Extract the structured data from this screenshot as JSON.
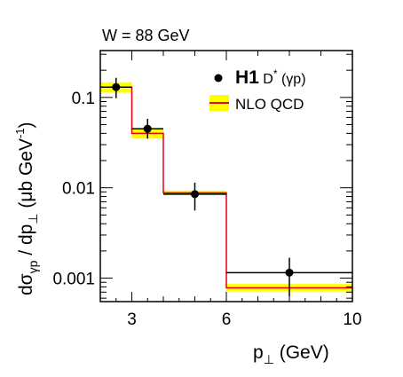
{
  "chart_data": {
    "type": "step",
    "title": "W = 88 GeV",
    "xlabel": {
      "main": "p",
      "sub": "⊥",
      "unit": "  (GeV)"
    },
    "ylabel": {
      "d1": "dσ",
      "sub1": "γp",
      "mid": " / dp",
      "sub2": "⊥",
      "unit": "  (μb GeV",
      "exp": "-1",
      "close": ")"
    },
    "x_scale": "linear",
    "y_scale": "log",
    "xlim": [
      2,
      10
    ],
    "ylim": [
      0.00055,
      0.33
    ],
    "x_ticks": [
      3,
      6,
      10
    ],
    "y_ticks": [
      0.1,
      0.01,
      0.001
    ],
    "grid": false,
    "legend_position": "top-right",
    "series": [
      {
        "name": "H1",
        "name_suffix": " D",
        "name_sup": "*",
        "name_tail": " (γp)",
        "kind": "data",
        "color": "#000000",
        "points": [
          {
            "x": 2.5,
            "y": 0.13,
            "ylow": 0.098,
            "yhigh": 0.165,
            "xlow": 2,
            "xhigh": 3
          },
          {
            "x": 3.5,
            "y": 0.045,
            "ylow": 0.035,
            "yhigh": 0.058,
            "xlow": 3,
            "xhigh": 4
          },
          {
            "x": 5.0,
            "y": 0.0085,
            "ylow": 0.0056,
            "yhigh": 0.0114,
            "xlow": 4,
            "xhigh": 6
          },
          {
            "x": 8.0,
            "y": 0.00115,
            "ylow": 0.00063,
            "yhigh": 0.00168,
            "xlow": 6,
            "xhigh": 10
          }
        ]
      },
      {
        "name": "NLO QCD",
        "kind": "theory-band",
        "line_color": "#e8000b",
        "band_color": "#ffff00",
        "bins": [
          {
            "xlow": 2,
            "xhigh": 3,
            "y": 0.13,
            "ylow": 0.113,
            "yhigh": 0.147
          },
          {
            "xlow": 3,
            "xhigh": 4,
            "y": 0.04,
            "ylow": 0.035,
            "yhigh": 0.045
          },
          {
            "xlow": 4,
            "xhigh": 6,
            "y": 0.0088,
            "ylow": 0.0083,
            "yhigh": 0.0093
          },
          {
            "xlow": 6,
            "xhigh": 10,
            "y": 0.00078,
            "ylow": 0.00071,
            "yhigh": 0.00086
          }
        ]
      }
    ]
  }
}
